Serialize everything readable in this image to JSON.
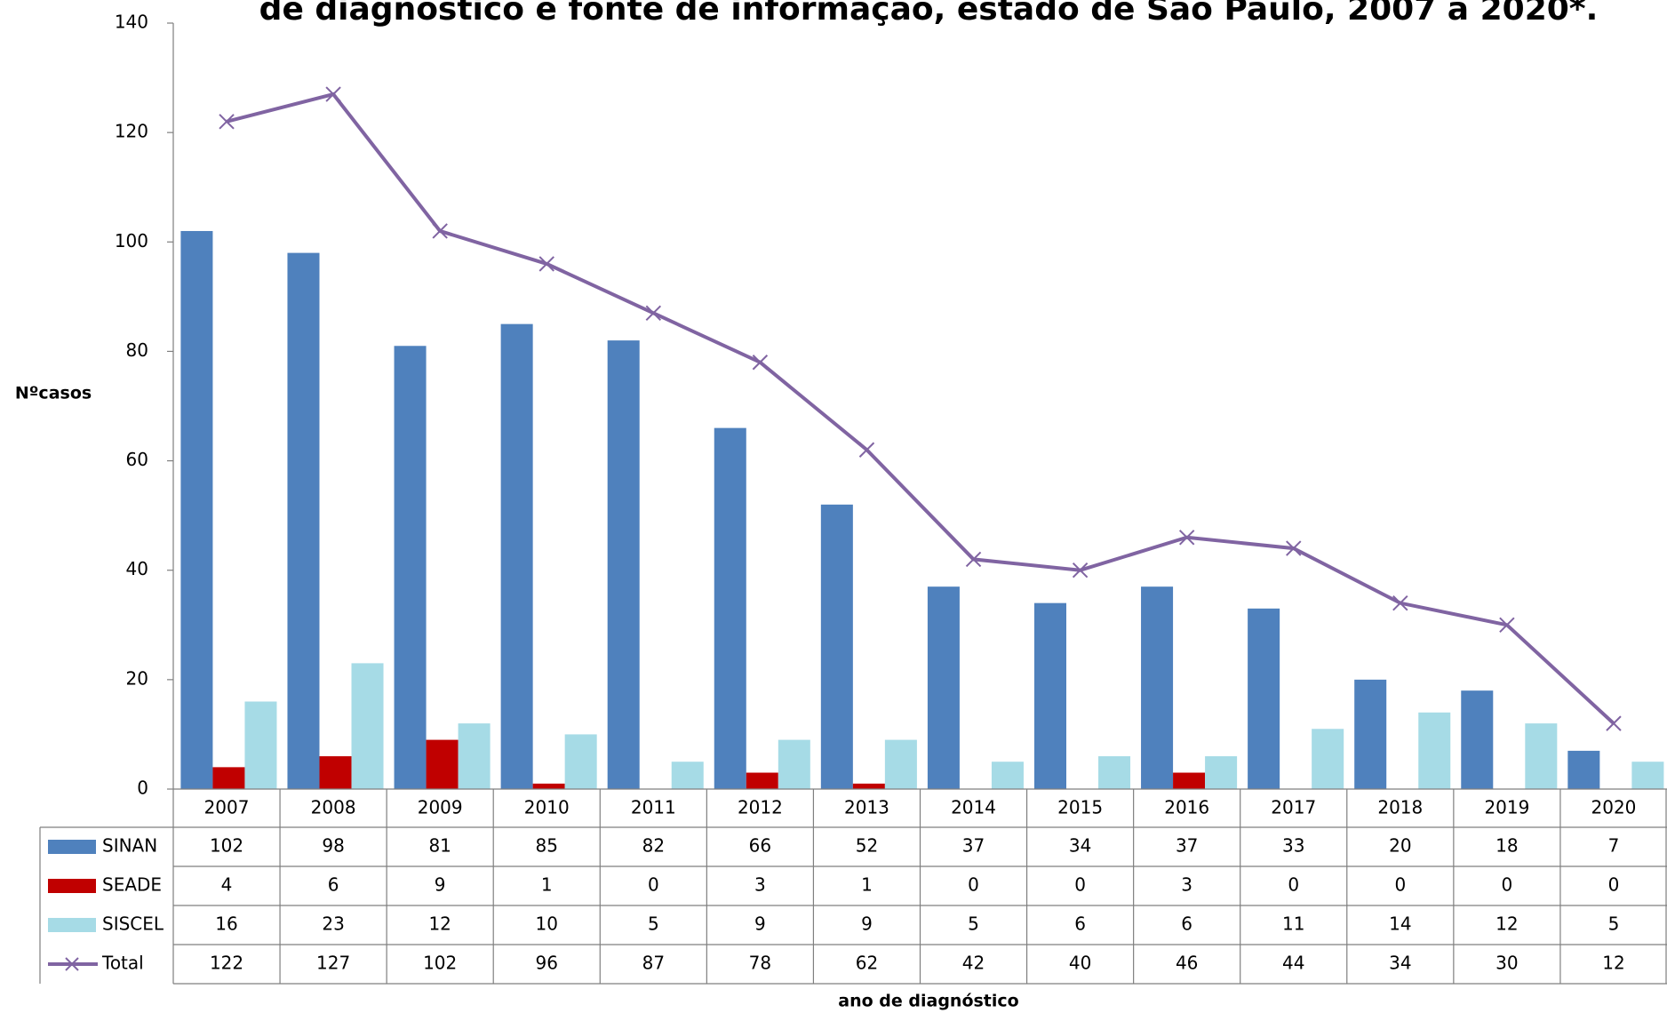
{
  "chart_data": {
    "type": "bar",
    "title": "de diagnóstico e fonte de informação, estado de São Paulo, 2007 à 2020*.",
    "x_label": "ano de diagnóstico",
    "y_label": "Nºcasos",
    "categories": [
      "2007",
      "2008",
      "2009",
      "2010",
      "2011",
      "2012",
      "2013",
      "2014",
      "2015",
      "2016",
      "2017",
      "2018",
      "2019",
      "2020"
    ],
    "series": [
      {
        "name": "SINAN",
        "type": "bar",
        "color": "#4f81bd",
        "values": [
          102,
          98,
          81,
          85,
          82,
          66,
          52,
          37,
          34,
          37,
          33,
          20,
          18,
          7
        ]
      },
      {
        "name": "SEADE",
        "type": "bar",
        "color": "#c00000",
        "values": [
          4,
          6,
          9,
          1,
          0,
          3,
          1,
          0,
          0,
          3,
          0,
          0,
          0,
          0
        ]
      },
      {
        "name": "SISCEL",
        "type": "bar",
        "color": "#a6dbe6",
        "values": [
          16,
          23,
          12,
          10,
          5,
          9,
          9,
          5,
          6,
          6,
          11,
          14,
          12,
          5
        ]
      },
      {
        "name": "Total",
        "type": "line",
        "color": "#8064a2",
        "values": [
          122,
          127,
          102,
          96,
          87,
          78,
          62,
          42,
          40,
          46,
          44,
          34,
          30,
          12
        ]
      }
    ],
    "ylim": [
      0,
      140
    ],
    "yticks": [
      0,
      20,
      40,
      60,
      80,
      100,
      120,
      140
    ],
    "grid": false
  }
}
